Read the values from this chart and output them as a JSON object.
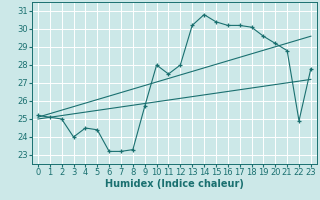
{
  "xlabel": "Humidex (Indice chaleur)",
  "bg_color": "#cce8e8",
  "line_color": "#1a7070",
  "grid_color": "#ffffff",
  "xlim": [
    -0.5,
    23.5
  ],
  "ylim": [
    22.5,
    31.5
  ],
  "yticks": [
    23,
    24,
    25,
    26,
    27,
    28,
    29,
    30,
    31
  ],
  "xticks": [
    0,
    1,
    2,
    3,
    4,
    5,
    6,
    7,
    8,
    9,
    10,
    11,
    12,
    13,
    14,
    15,
    16,
    17,
    18,
    19,
    20,
    21,
    22,
    23
  ],
  "main_x": [
    0,
    1,
    2,
    3,
    4,
    5,
    6,
    7,
    8,
    9,
    10,
    11,
    12,
    13,
    14,
    15,
    16,
    17,
    18,
    19,
    20,
    21,
    22,
    23
  ],
  "main_y": [
    25.2,
    25.1,
    25.0,
    24.0,
    24.5,
    24.4,
    23.2,
    23.2,
    23.3,
    25.7,
    28.0,
    27.5,
    28.0,
    30.2,
    30.8,
    30.4,
    30.2,
    30.2,
    30.1,
    29.6,
    29.2,
    28.8,
    24.9,
    27.8
  ],
  "trend1_x": [
    0,
    23
  ],
  "trend1_y": [
    25.1,
    29.6
  ],
  "trend2_x": [
    0,
    23
  ],
  "trend2_y": [
    25.0,
    27.2
  ],
  "xlabel_fontsize": 7,
  "tick_fontsize": 6
}
